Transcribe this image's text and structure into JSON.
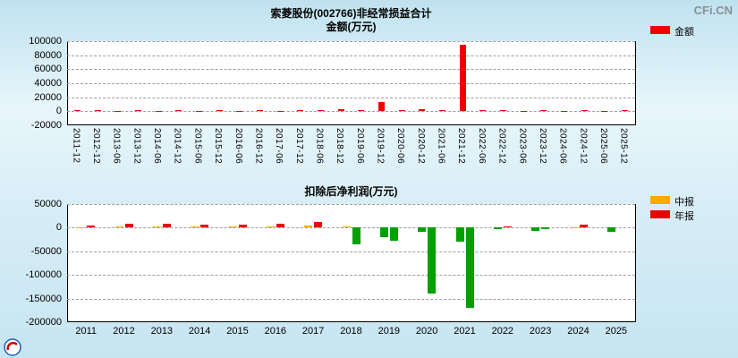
{
  "watermark": "CFi.CN",
  "chart_data": [
    {
      "type": "bar",
      "title": "索菱股份(002766)非经常损益合计",
      "subtitle": "金额(万元)",
      "ylim": [
        -20000,
        100000
      ],
      "yticks": [
        100000,
        80000,
        60000,
        40000,
        20000,
        0,
        -20000
      ],
      "grid": true,
      "legend_position": "right-top",
      "legend": [
        {
          "label": "金额",
          "color": "#ee0000"
        }
      ],
      "negative_color": "#00a000",
      "categories": [
        "2011-12",
        "2012-12",
        "2013-06",
        "2013-12",
        "2014-06",
        "2014-12",
        "2015-06",
        "2015-12",
        "2016-06",
        "2016-12",
        "2017-06",
        "2017-12",
        "2018-06",
        "2018-12",
        "2019-06",
        "2019-12",
        "2020-06",
        "2020-12",
        "2021-06",
        "2021-12",
        "2022-06",
        "2022-12",
        "2023-06",
        "2023-12",
        "2024-06",
        "2024-12",
        "2025-06",
        "2025-12"
      ],
      "values": [
        1500,
        2000,
        800,
        1600,
        700,
        1400,
        900,
        1700,
        800,
        1900,
        1000,
        2200,
        1100,
        2600,
        1300,
        13000,
        1600,
        3000,
        1400,
        95000,
        1700,
        2300,
        1000,
        1800,
        900,
        2000,
        1000,
        1300
      ]
    },
    {
      "type": "bar",
      "title": "扣除后净利润(万元)",
      "ylim": [
        -200000,
        50000
      ],
      "yticks": [
        50000,
        0,
        -50000,
        -100000,
        -150000,
        -200000
      ],
      "grid": true,
      "legend_position": "right-top",
      "legend": [
        {
          "label": "中报",
          "color": "#ffaa00"
        },
        {
          "label": "年报",
          "color": "#ee0000"
        }
      ],
      "negative_color": "#00a000",
      "categories": [
        "2011",
        "2012",
        "2013",
        "2014",
        "2015",
        "2016",
        "2017",
        "2018",
        "2019",
        "2020",
        "2021",
        "2022",
        "2023",
        "2024",
        "2025"
      ],
      "series": [
        {
          "name": "中报",
          "color": "#ffaa00",
          "values": [
            1500,
            2000,
            3500,
            2000,
            2500,
            3000,
            4500,
            3000,
            -20000,
            -9000,
            -30000,
            -3000,
            -7000,
            1500,
            -9500
          ]
        },
        {
          "name": "年报",
          "color": "#ee0000",
          "values": [
            4000,
            7500,
            7500,
            5500,
            6000,
            8000,
            12000,
            -35000,
            -27000,
            -140000,
            -170000,
            2500,
            -3500,
            6000,
            null
          ]
        }
      ]
    }
  ]
}
